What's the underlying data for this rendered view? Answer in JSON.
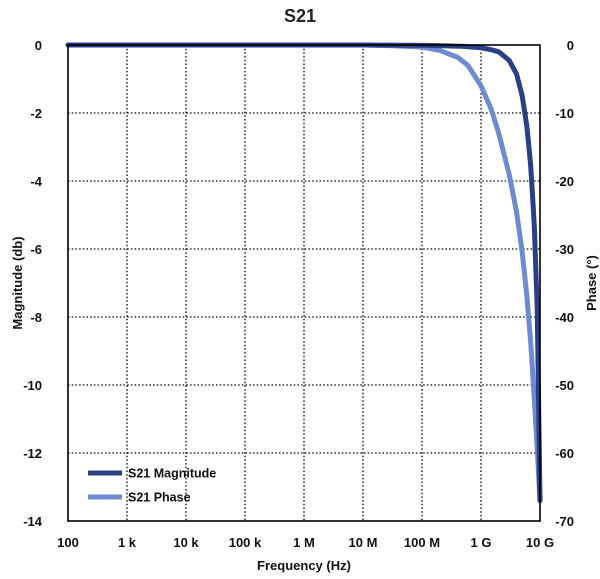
{
  "chart_data": {
    "type": "line",
    "title": "S21",
    "xlabel": "Frequency (Hz)",
    "ylabel": "Magnitude (db)",
    "y2label": "Phase (°)",
    "x_scale": "log",
    "xlim": [
      100,
      10000000000
    ],
    "ylim": [
      -14,
      0
    ],
    "y2lim": [
      -70,
      0
    ],
    "x_ticks": [
      {
        "value": 100,
        "label": "100"
      },
      {
        "value": 1000,
        "label": "1 k"
      },
      {
        "value": 10000,
        "label": "10 k"
      },
      {
        "value": 100000,
        "label": "100 k"
      },
      {
        "value": 1000000,
        "label": "1 M"
      },
      {
        "value": 10000000,
        "label": "10 M"
      },
      {
        "value": 100000000,
        "label": "100 M"
      },
      {
        "value": 1000000000,
        "label": "1 G"
      },
      {
        "value": 10000000000,
        "label": "10 G"
      }
    ],
    "y_ticks": [
      {
        "value": 0,
        "label": "0"
      },
      {
        "value": -2,
        "label": "-2"
      },
      {
        "value": -4,
        "label": "-4"
      },
      {
        "value": -6,
        "label": "-6"
      },
      {
        "value": -8,
        "label": "-8"
      },
      {
        "value": -10,
        "label": "-10"
      },
      {
        "value": -12,
        "label": "-12"
      },
      {
        "value": -14,
        "label": "-14"
      }
    ],
    "y2_ticks": [
      {
        "value": 0,
        "label": "0"
      },
      {
        "value": -10,
        "label": "-10"
      },
      {
        "value": -20,
        "label": "-20"
      },
      {
        "value": -30,
        "label": "-30"
      },
      {
        "value": -40,
        "label": "-40"
      },
      {
        "value": -50,
        "label": "-50"
      },
      {
        "value": -60,
        "label": "-60"
      },
      {
        "value": -70,
        "label": "-70"
      }
    ],
    "grid": true,
    "legend_position": "bottom-left",
    "series": [
      {
        "name": "S21 Magnitude",
        "axis": "left",
        "color": "#2b3f86",
        "x": [
          100,
          1000,
          10000,
          100000,
          1000000,
          10000000,
          100000000,
          200000000,
          500000000,
          1000000000,
          1500000000,
          2000000000,
          3000000000,
          4000000000,
          5000000000,
          6000000000,
          7000000000,
          8000000000,
          9000000000,
          10000000000
        ],
        "y": [
          0,
          0,
          0,
          0,
          0,
          0,
          -0.01,
          -0.02,
          -0.04,
          -0.08,
          -0.14,
          -0.2,
          -0.45,
          -0.85,
          -1.5,
          -2.4,
          -3.6,
          -5.3,
          -7.8,
          -13.4
        ]
      },
      {
        "name": "S21 Phase",
        "axis": "right",
        "color": "#6d8bd1",
        "x": [
          100,
          1000,
          10000,
          100000,
          1000000,
          10000000,
          30000000,
          100000000,
          200000000,
          400000000,
          600000000,
          1000000000,
          1500000000,
          2000000000,
          3000000000,
          4000000000,
          5000000000,
          6000000000,
          7000000000,
          8000000000,
          9000000000,
          10000000000
        ],
        "y": [
          0,
          0,
          0,
          0,
          0,
          0,
          -0.1,
          -0.3,
          -0.8,
          -1.8,
          -3,
          -6,
          -9.5,
          -13,
          -19,
          -24.5,
          -30.5,
          -37,
          -44,
          -52,
          -59.5,
          -67
        ]
      }
    ]
  }
}
